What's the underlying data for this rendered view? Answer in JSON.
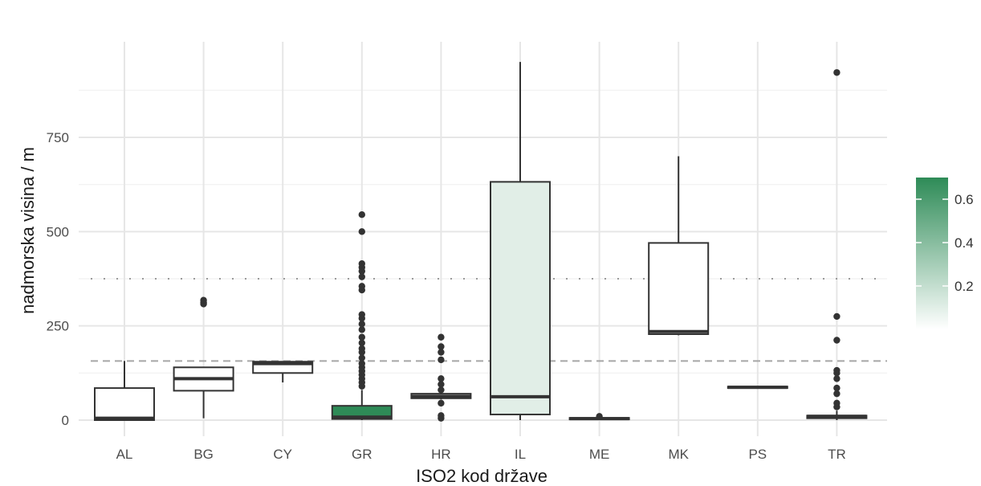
{
  "chart_data": {
    "type": "boxplot",
    "xlabel": "ISO2 kod države",
    "ylabel": "nadmorska visina / m",
    "ylim": [
      -40,
      960
    ],
    "yticks": [
      0,
      250,
      500,
      750
    ],
    "grid": true,
    "reference_lines": [
      {
        "style": "dashed",
        "y": 157
      },
      {
        "style": "dotted",
        "y": 375
      }
    ],
    "categories": [
      "AL",
      "BG",
      "CY",
      "GR",
      "HR",
      "IL",
      "ME",
      "MK",
      "PS",
      "TR"
    ],
    "boxes": [
      {
        "category": "AL",
        "whisker_low": 0,
        "q1": 0,
        "median": 5,
        "q3": 85,
        "whisker_high": 157,
        "outliers": [],
        "fill": 0.0
      },
      {
        "category": "BG",
        "whisker_low": 5,
        "q1": 78,
        "median": 110,
        "q3": 140,
        "whisker_high": 140,
        "outliers": [
          308,
          312,
          318
        ],
        "fill": 0.0
      },
      {
        "category": "CY",
        "whisker_low": 100,
        "q1": 125,
        "median": 150,
        "q3": 155,
        "whisker_high": 155,
        "outliers": [],
        "fill": 0.0
      },
      {
        "category": "GR",
        "whisker_low": 0,
        "q1": 3,
        "median": 8,
        "q3": 38,
        "whisker_high": 80,
        "outliers": [
          90,
          100,
          110,
          120,
          130,
          140,
          150,
          165,
          180,
          190,
          205,
          220,
          240,
          255,
          270,
          280,
          345,
          355,
          380,
          395,
          405,
          415,
          500,
          545
        ],
        "fill": 0.72
      },
      {
        "category": "HR",
        "whisker_low": 55,
        "q1": 58,
        "median": 63,
        "q3": 70,
        "whisker_high": 70,
        "outliers": [
          5,
          12,
          45,
          80,
          95,
          110,
          160,
          180,
          195,
          220
        ],
        "fill": 0.0
      },
      {
        "category": "IL",
        "whisker_low": 0,
        "q1": 15,
        "median": 62,
        "q3": 632,
        "whisker_high": 950,
        "outliers": [],
        "fill": 0.1
      },
      {
        "category": "ME",
        "whisker_low": 0,
        "q1": 2,
        "median": 4,
        "q3": 6,
        "whisker_high": 6,
        "outliers": [
          10
        ],
        "fill": 0.0
      },
      {
        "category": "MK",
        "whisker_low": 225,
        "q1": 228,
        "median": 235,
        "q3": 470,
        "whisker_high": 700,
        "outliers": [],
        "fill": 0.0
      },
      {
        "category": "PS",
        "whisker_low": 85,
        "q1": 85,
        "median": 87,
        "q3": 89,
        "whisker_high": 89,
        "outliers": [],
        "fill": 0.0
      },
      {
        "category": "TR",
        "whisker_low": 0,
        "q1": 5,
        "median": 10,
        "q3": 12,
        "whisker_high": 25,
        "outliers": [
          35,
          45,
          70,
          85,
          110,
          125,
          132,
          212,
          275,
          922
        ],
        "fill": 0.0
      }
    ],
    "legend": {
      "type": "colorbar",
      "placement": "right",
      "low_color": "#ffffff",
      "high_color": "#2e8b57",
      "range": [
        0,
        0.7
      ],
      "ticks": [
        0.2,
        0.4,
        0.6
      ],
      "tick_labels": [
        "0.2",
        "0.4",
        "0.6"
      ]
    }
  }
}
